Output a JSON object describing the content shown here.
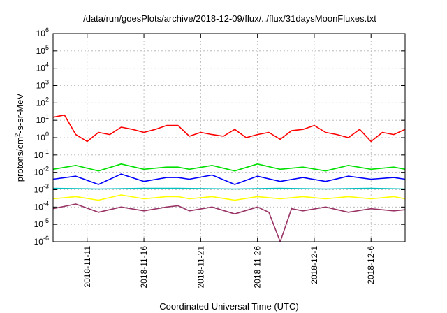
{
  "chart_data": {
    "type": "line",
    "title": "/data/run/goesPlots/archive/2018-12-09/flux/../flux/31daysMoonFluxes.txt",
    "xlabel": "Coordinated Universal Time (UTC)",
    "ylabel": "protons/cm²-s-sr-MeV",
    "yscale": "log",
    "ylim": [
      1e-06,
      1000000.0
    ],
    "xlim": [
      "2018-11-08",
      "2018-12-09"
    ],
    "y_ticks": [
      {
        "value": 1e-06,
        "base": "10",
        "exp": "-6"
      },
      {
        "value": 1e-05,
        "base": "10",
        "exp": "-5"
      },
      {
        "value": 0.0001,
        "base": "10",
        "exp": "-4"
      },
      {
        "value": 0.001,
        "base": "10",
        "exp": "-3"
      },
      {
        "value": 0.01,
        "base": "10",
        "exp": "-2"
      },
      {
        "value": 0.1,
        "base": "10",
        "exp": "-1"
      },
      {
        "value": 1.0,
        "base": "10",
        "exp": "0"
      },
      {
        "value": 10.0,
        "base": "10",
        "exp": "1"
      },
      {
        "value": 100.0,
        "base": "10",
        "exp": "2"
      },
      {
        "value": 1000.0,
        "base": "10",
        "exp": "3"
      },
      {
        "value": 10000.0,
        "base": "10",
        "exp": "4"
      },
      {
        "value": 100000.0,
        "base": "10",
        "exp": "5"
      },
      {
        "value": 1000000.0,
        "base": "10",
        "exp": "6"
      }
    ],
    "x_ticks": [
      {
        "date": "2018-11-11",
        "label": "2018-11-11"
      },
      {
        "date": "2018-11-16",
        "label": "2018-11-16"
      },
      {
        "date": "2018-11-21",
        "label": "2018-11-21"
      },
      {
        "date": "2018-11-26",
        "label": "2018-11-26"
      },
      {
        "date": "2018-12-01",
        "label": "2018-12-1"
      },
      {
        "date": "2018-12-06",
        "label": "2018-12-6"
      }
    ],
    "grid": true,
    "legend": "none",
    "series": [
      {
        "color": "#ff0000",
        "x": [
          "2018-11-08",
          "2018-11-09",
          "2018-11-10",
          "2018-11-11",
          "2018-11-12",
          "2018-11-13",
          "2018-11-14",
          "2018-11-15",
          "2018-11-16",
          "2018-11-17",
          "2018-11-18",
          "2018-11-19",
          "2018-11-20",
          "2018-11-21",
          "2018-11-22",
          "2018-11-23",
          "2018-11-24",
          "2018-11-25",
          "2018-11-26",
          "2018-11-27",
          "2018-11-28",
          "2018-11-29",
          "2018-11-30",
          "2018-12-01",
          "2018-12-02",
          "2018-12-03",
          "2018-12-04",
          "2018-12-05",
          "2018-12-06",
          "2018-12-07",
          "2018-12-08",
          "2018-12-09"
        ],
        "y": [
          15,
          20,
          1.5,
          0.6,
          2.0,
          1.5,
          4,
          3,
          2.0,
          3,
          5,
          5,
          1.2,
          2,
          1.5,
          1.2,
          3,
          1.0,
          1.5,
          2,
          0.8,
          2.5,
          3,
          5,
          2,
          1.5,
          1.0,
          3,
          0.6,
          2,
          1.5,
          3
        ]
      },
      {
        "color": "#00e000",
        "x": [
          "2018-11-08",
          "2018-11-10",
          "2018-11-12",
          "2018-11-14",
          "2018-11-16",
          "2018-11-18",
          "2018-11-19",
          "2018-11-20",
          "2018-11-22",
          "2018-11-24",
          "2018-11-26",
          "2018-11-28",
          "2018-11-30",
          "2018-12-02",
          "2018-12-04",
          "2018-12-06",
          "2018-12-08",
          "2018-12-09"
        ],
        "y": [
          0.015,
          0.025,
          0.012,
          0.03,
          0.015,
          0.02,
          0.02,
          0.015,
          0.025,
          0.012,
          0.03,
          0.015,
          0.02,
          0.012,
          0.025,
          0.015,
          0.02,
          0.015
        ]
      },
      {
        "color": "#0000ff",
        "x": [
          "2018-11-08",
          "2018-11-10",
          "2018-11-12",
          "2018-11-14",
          "2018-11-16",
          "2018-11-18",
          "2018-11-19",
          "2018-11-20",
          "2018-11-22",
          "2018-11-24",
          "2018-11-26",
          "2018-11-28",
          "2018-11-30",
          "2018-12-02",
          "2018-12-04",
          "2018-12-06",
          "2018-12-08",
          "2018-12-09"
        ],
        "y": [
          0.004,
          0.006,
          0.002,
          0.008,
          0.003,
          0.005,
          0.005,
          0.004,
          0.007,
          0.002,
          0.006,
          0.003,
          0.005,
          0.003,
          0.006,
          0.004,
          0.005,
          0.004
        ]
      },
      {
        "color": "#00c0c0",
        "x": [
          "2018-11-08",
          "2018-11-12",
          "2018-11-16",
          "2018-11-19",
          "2018-11-24",
          "2018-11-28",
          "2018-12-02",
          "2018-12-06",
          "2018-12-09"
        ],
        "y": [
          0.0012,
          0.0011,
          0.0012,
          0.0012,
          0.0011,
          0.0012,
          0.0011,
          0.0012,
          0.0011
        ]
      },
      {
        "color": "#ffff00",
        "x": [
          "2018-11-08",
          "2018-11-10",
          "2018-11-12",
          "2018-11-14",
          "2018-11-16",
          "2018-11-18",
          "2018-11-19",
          "2018-11-20",
          "2018-11-22",
          "2018-11-24",
          "2018-11-26",
          "2018-11-28",
          "2018-11-30",
          "2018-12-02",
          "2018-12-04",
          "2018-12-06",
          "2018-12-08",
          "2018-12-09"
        ],
        "y": [
          0.0003,
          0.0004,
          0.00025,
          0.0005,
          0.0003,
          0.0004,
          0.0004,
          0.0003,
          0.0004,
          0.00025,
          0.0004,
          0.0003,
          0.0004,
          0.0003,
          0.0004,
          0.0003,
          0.0004,
          0.0003
        ]
      },
      {
        "color": "#993366",
        "x": [
          "2018-11-08",
          "2018-11-10",
          "2018-11-12",
          "2018-11-14",
          "2018-11-16",
          "2018-11-18",
          "2018-11-19",
          "2018-11-20",
          "2018-11-22",
          "2018-11-24",
          "2018-11-26",
          "2018-11-27",
          "2018-11-28",
          "2018-11-29",
          "2018-11-30",
          "2018-12-02",
          "2018-12-04",
          "2018-12-06",
          "2018-12-08",
          "2018-12-09"
        ],
        "y": [
          8e-05,
          0.00015,
          5e-05,
          0.0001,
          6e-05,
          0.0001,
          0.00012,
          6e-05,
          0.0001,
          4e-05,
          0.0001,
          5e-05,
          1e-06,
          8e-05,
          6e-05,
          0.0001,
          5e-05,
          8e-05,
          6e-05,
          7e-05
        ]
      }
    ]
  }
}
